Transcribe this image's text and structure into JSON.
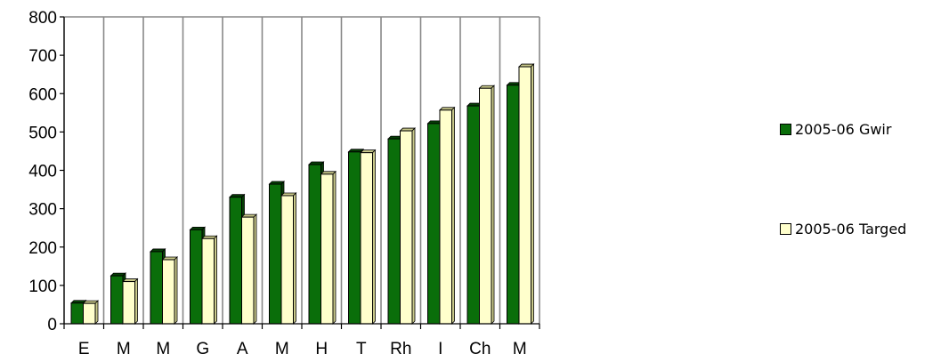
{
  "chart_data": {
    "type": "bar",
    "categories": [
      "E",
      "M",
      "M",
      "G",
      "A",
      "M",
      "H",
      "T",
      "Rh",
      "I",
      "Ch",
      "M"
    ],
    "series": [
      {
        "name": "2005-06 Gwir",
        "color": "#0a6e0a",
        "values": [
          54,
          125,
          188,
          245,
          330,
          364,
          415,
          448,
          482,
          522,
          568,
          622
        ]
      },
      {
        "name": "2005-06 Targed",
        "color": "#ffffcc",
        "values": [
          53,
          110,
          167,
          222,
          278,
          334,
          390,
          446,
          503,
          557,
          614,
          670
        ]
      }
    ],
    "ylim": [
      0,
      800
    ],
    "yticks": [
      0,
      100,
      200,
      300,
      400,
      500,
      600,
      700,
      800
    ],
    "grid": "vertical",
    "legend_position": "right"
  }
}
